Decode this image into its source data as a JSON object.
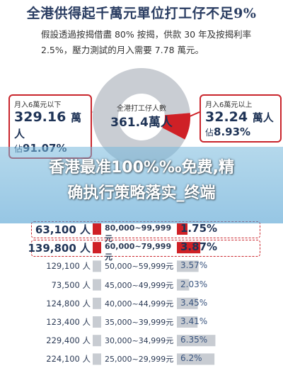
{
  "title": "全港供得起千萬元單位打工仔不足9%",
  "intro_line1": "假設透過按揭借盡 80% 按揭，供款 30 年及按揭利率",
  "intro_line2": "2.5%，壓力測試的月入需要 7.78 萬元。",
  "donut_center": {
    "label": "全港打工仔人數",
    "value": "361.4萬人"
  },
  "left_callout": {
    "label": "月入6萬元以下",
    "value": "329.16",
    "unit": "萬人",
    "share_prefix": "佔",
    "share": "91.07%"
  },
  "right_callout": {
    "label": "月入6萬元以上",
    "value": "32.24",
    "unit": "萬人",
    "share_prefix": "佔",
    "share": "8.93%"
  },
  "banner_line1": "香港最准100%‰免费,精",
  "banner_line2": "确执行策略落实_终端",
  "colors": {
    "grey": "#c9cdd3",
    "red": "#cf2026",
    "bar": "#c8ccd2",
    "highlight_bar": "#cf2026",
    "navy": "#1e3356"
  },
  "chart_data": [
    {
      "type": "pie",
      "slices": [
        {
          "label": "月入6萬元以下",
          "value": 91.07
        },
        {
          "label": "月入6萬元以上",
          "value": 8.93
        }
      ]
    },
    {
      "type": "bar",
      "categories": [
        "80,000~99,999元",
        "60,000~79,999元",
        "50,000~59,999元",
        "45,000~49,999元",
        "40,000~44,999元",
        "35,000~39,999元",
        "30,000~34,999元",
        "25,000~29,999元"
      ],
      "people": [
        "63,100 人",
        "139,800 人",
        "129,100 人",
        "73,500 人",
        "124,800 人",
        "123,400 人",
        "229,400 人",
        "224,100 人"
      ],
      "values": [
        1.75,
        3.87,
        3.57,
        2.03,
        3.45,
        3.41,
        6.35,
        6.2
      ],
      "pct_labels": [
        "1.75%",
        "3.87%",
        "3.57%",
        "2.03%",
        "3.45%",
        "3.41%",
        "6.35%",
        "6.2%"
      ],
      "highlighted": [
        true,
        true,
        false,
        false,
        false,
        false,
        false,
        false
      ]
    }
  ]
}
